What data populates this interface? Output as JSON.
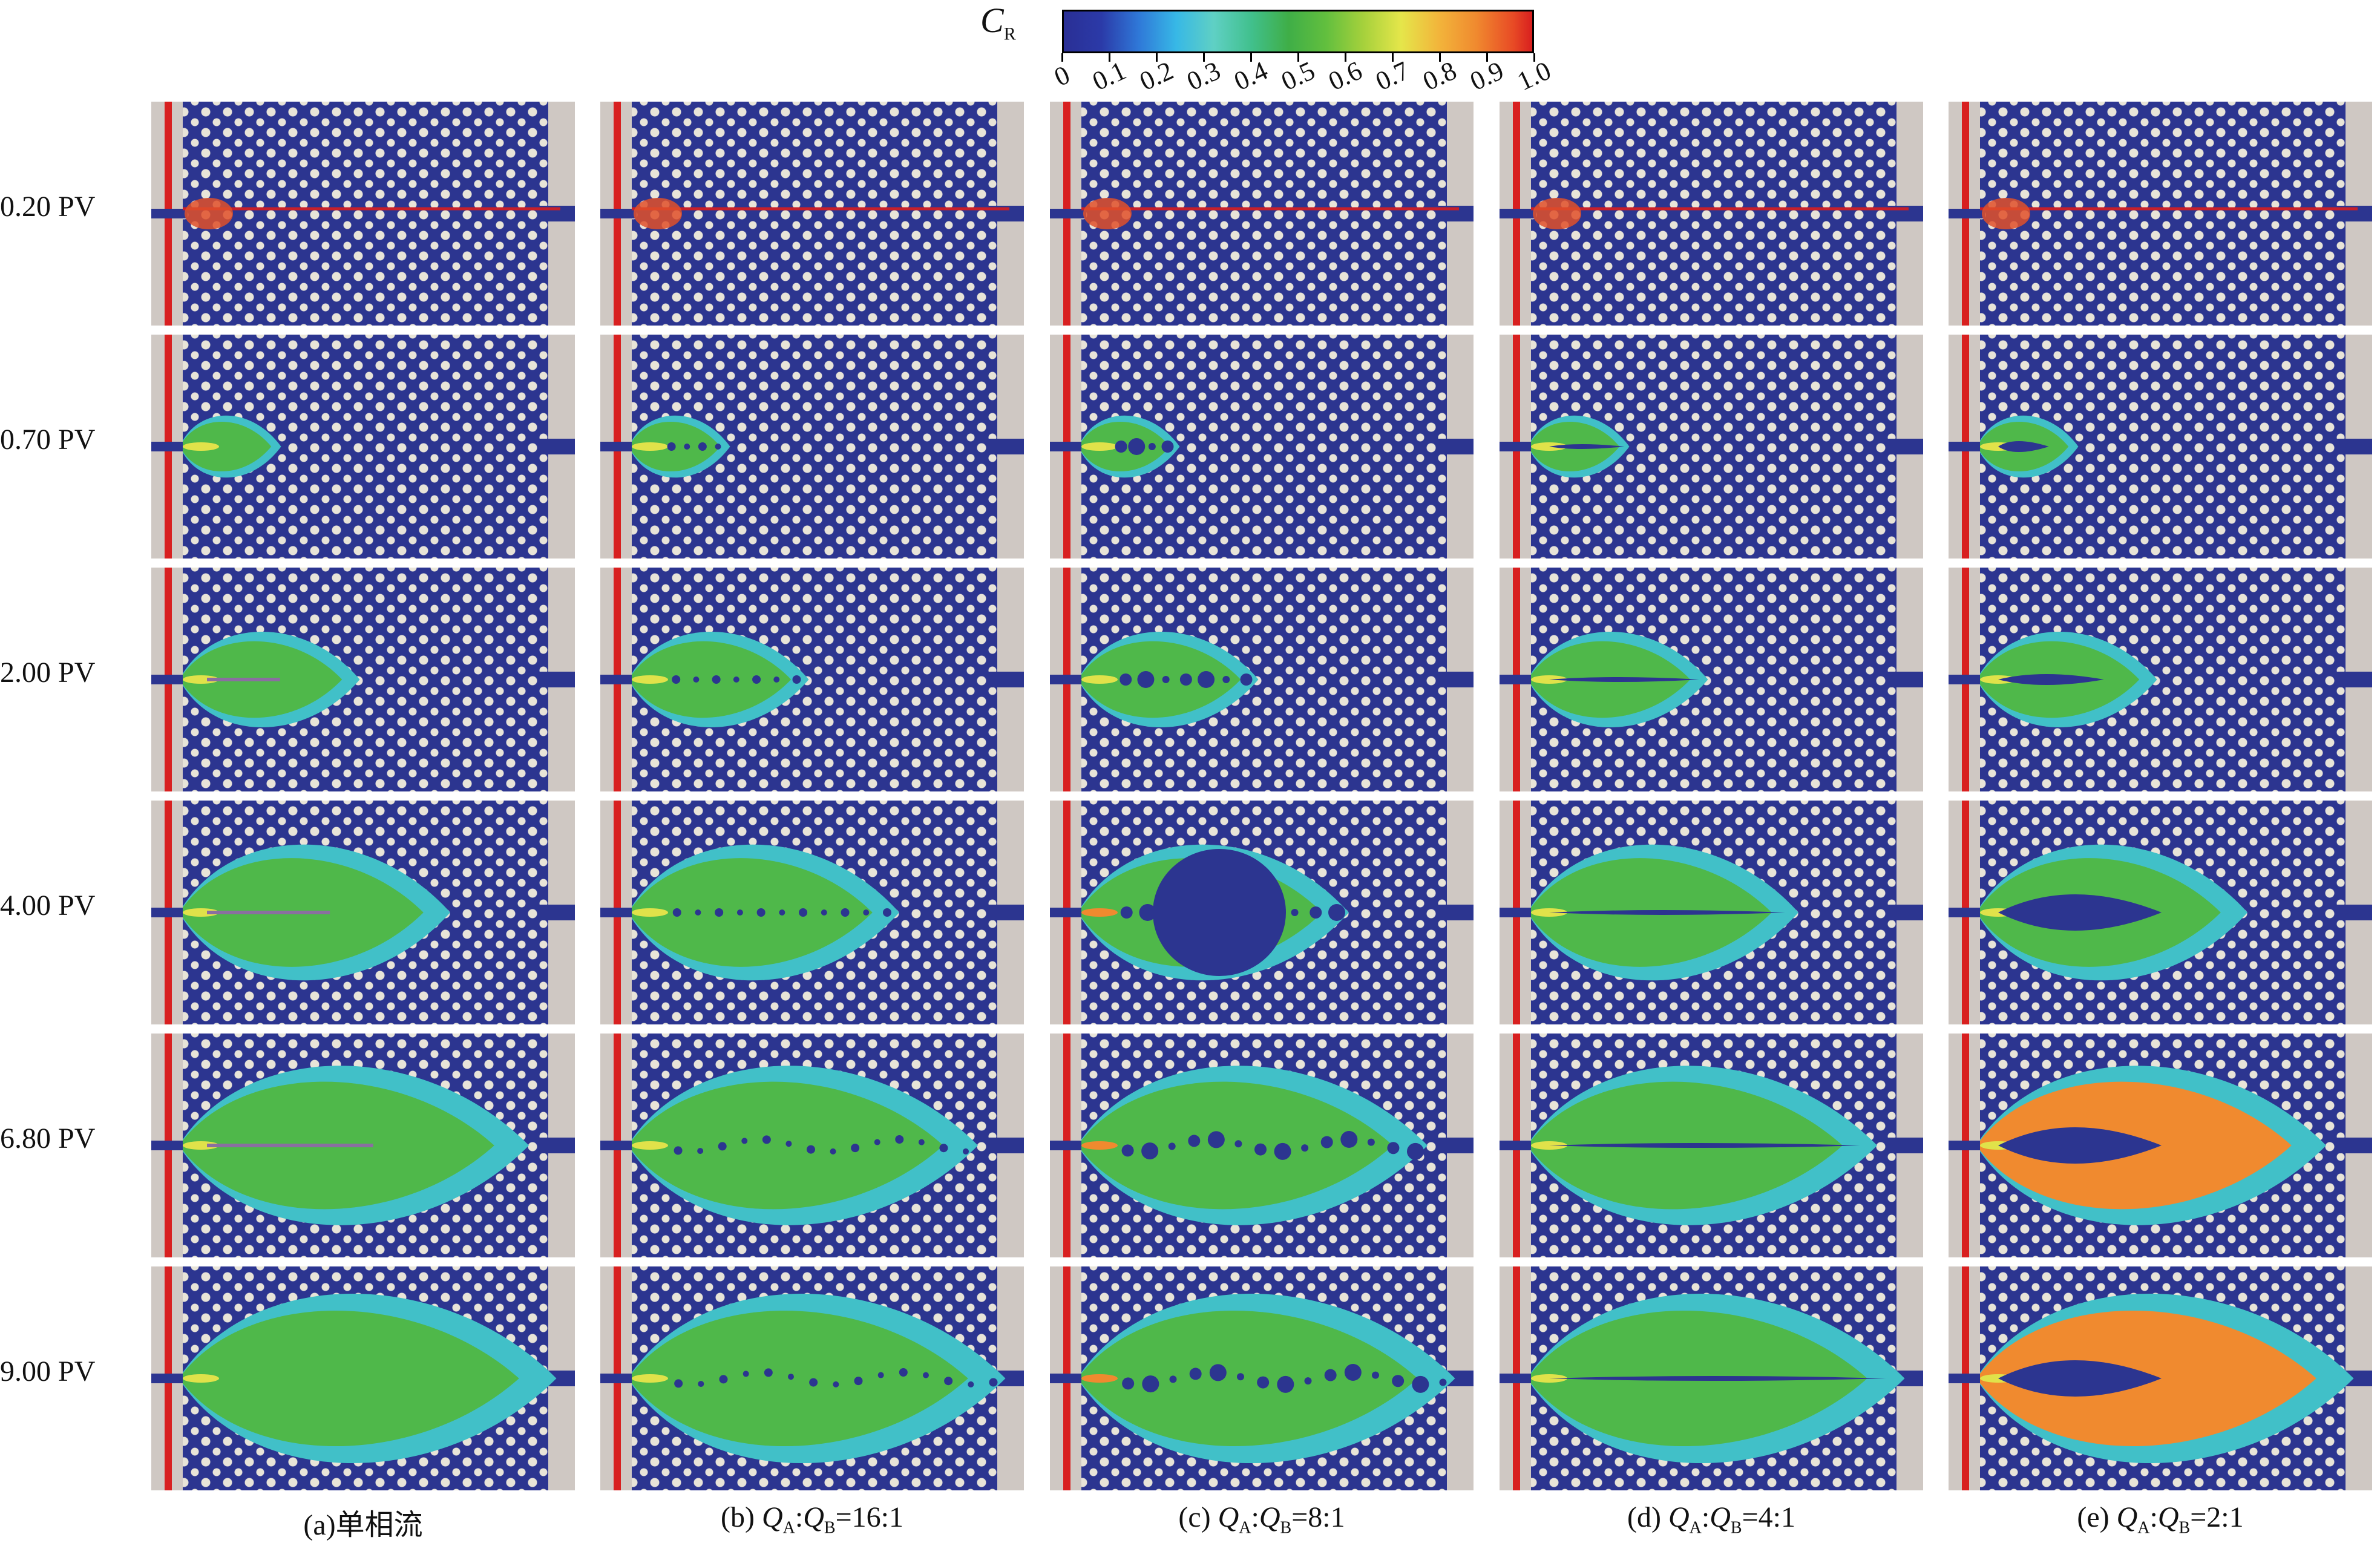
{
  "colorbar": {
    "symbol": "C",
    "subscript": "R",
    "ticks": [
      "0",
      "0.1",
      "0.2",
      "0.3",
      "0.4",
      "0.5",
      "0.6",
      "0.7",
      "0.8",
      "0.9",
      "1.0"
    ],
    "colors": [
      "#2a2f95",
      "#2f78d8",
      "#37b8e6",
      "#41c08d",
      "#3fae47",
      "#a6d13c",
      "#e5e64a",
      "#f08a2f",
      "#d81f1f"
    ]
  },
  "rows": [
    {
      "label": "0.20 PV"
    },
    {
      "label": "0.70 PV"
    },
    {
      "label": "2.00 PV"
    },
    {
      "label": "4.00 PV"
    },
    {
      "label": "6.80 PV"
    },
    {
      "label": "9.00 PV"
    }
  ],
  "columns": [
    {
      "prefix": "(a)",
      "text": "单相流"
    },
    {
      "prefix": "(b) ",
      "q1": "Q",
      "s1": "A",
      "sep": ":",
      "q2": "Q",
      "s2": "B",
      "ratio": "=16:1"
    },
    {
      "prefix": "(c) ",
      "q1": "Q",
      "s1": "A",
      "sep": ":",
      "q2": "Q",
      "s2": "B",
      "ratio": "=8:1"
    },
    {
      "prefix": "(d) ",
      "q1": "Q",
      "s1": "A",
      "sep": ":",
      "q2": "Q",
      "s2": "B",
      "ratio": "=4:1"
    },
    {
      "prefix": "(e) ",
      "q1": "Q",
      "s1": "A",
      "sep": ":",
      "q2": "Q",
      "s2": "B",
      "ratio": "=2:1"
    }
  ]
}
